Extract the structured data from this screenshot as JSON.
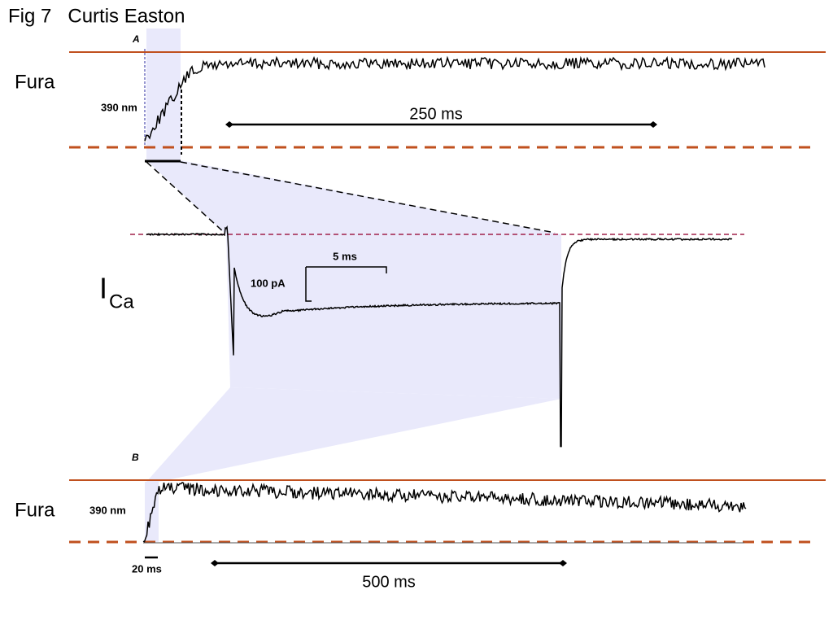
{
  "header": {
    "title": "Fig 7   Curtis Easton"
  },
  "panels": [
    {
      "label": "A",
      "signal": "Fura",
      "wavelength": "390 nm",
      "scale_bar": "250 ms"
    },
    {
      "label_main": "I",
      "label_sub": "Ca",
      "time_bar": "5 ms",
      "current_bar": "100 pA"
    },
    {
      "label": "B",
      "signal": "Fura",
      "wavelength": "390 nm",
      "zoom_bar": "20 ms",
      "scale_bar": "500 ms"
    }
  ]
}
